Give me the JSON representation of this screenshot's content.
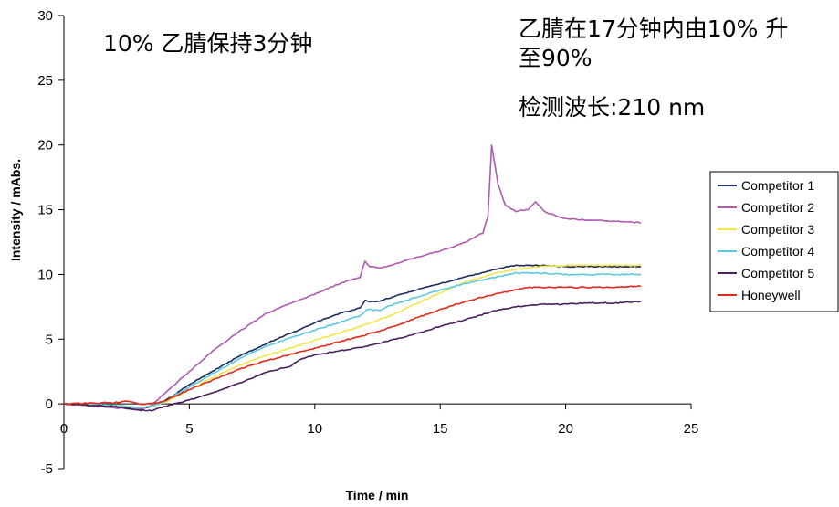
{
  "chart_data": {
    "type": "line",
    "xlabel": "Time / min",
    "ylabel": "Intensity / mAbs.",
    "xlim": [
      0,
      25
    ],
    "ylim": [
      -5,
      30
    ],
    "xticks": [
      0,
      5,
      10,
      15,
      20,
      25
    ],
    "yticks": [
      -5,
      0,
      5,
      10,
      15,
      20,
      25,
      30
    ],
    "grid": false,
    "legend_position": "right",
    "annotations": [
      "10% 乙腈保持3分钟",
      "乙腈在17分钟内由10% 升",
      "至90%",
      "检测波长:210 nm"
    ],
    "series": [
      {
        "name": "Competitor 1",
        "color": "#1f2d5a",
        "x": [
          0,
          2,
          3,
          3.5,
          4,
          5,
          6,
          7,
          8,
          8.7,
          9.5,
          10,
          11,
          11.8,
          12,
          12.1,
          12.5,
          13,
          14,
          15,
          16,
          17,
          18,
          19,
          20,
          21,
          22,
          23
        ],
        "y": [
          0,
          -0.2,
          -0.4,
          -0.2,
          0.2,
          1.5,
          2.6,
          3.7,
          4.6,
          5.2,
          5.8,
          6.3,
          7.0,
          7.4,
          8.0,
          7.9,
          7.9,
          8.2,
          8.8,
          9.3,
          9.8,
          10.3,
          10.7,
          10.7,
          10.6,
          10.6,
          10.6,
          10.6
        ]
      },
      {
        "name": "Competitor 2",
        "color": "#b05ab0",
        "x": [
          0,
          2,
          3,
          3.5,
          4,
          5,
          6,
          7,
          8,
          8.7,
          9.5,
          10,
          11,
          11.8,
          12,
          12.2,
          12.6,
          13,
          14,
          15,
          16,
          16.7,
          16.9,
          17.05,
          17.3,
          17.6,
          18,
          18.5,
          18.8,
          19.2,
          20,
          21,
          22,
          23
        ],
        "y": [
          0,
          -0.3,
          -0.4,
          -0.1,
          0.8,
          2.5,
          4.2,
          5.6,
          6.9,
          7.5,
          8.1,
          8.5,
          9.3,
          9.8,
          11.0,
          10.6,
          10.5,
          10.7,
          11.3,
          11.8,
          12.5,
          13.2,
          14.5,
          20.0,
          17.0,
          15.3,
          14.9,
          15.0,
          15.6,
          14.8,
          14.3,
          14.2,
          14.1,
          14.0
        ]
      },
      {
        "name": "Competitor 3",
        "color": "#f2e64a",
        "x": [
          0,
          2,
          3,
          3.5,
          4,
          5,
          6,
          7,
          8,
          9,
          10,
          11,
          12,
          13,
          14,
          15,
          16,
          17,
          18,
          19,
          20,
          21,
          22,
          23
        ],
        "y": [
          0,
          -0.1,
          -0.3,
          -0.2,
          0.1,
          1.1,
          2.1,
          3.0,
          3.7,
          4.3,
          4.9,
          5.5,
          6.1,
          6.8,
          7.7,
          8.6,
          9.4,
          10.0,
          10.4,
          10.6,
          10.7,
          10.7,
          10.7,
          10.7
        ]
      },
      {
        "name": "Competitor 4",
        "color": "#5cc8e0",
        "x": [
          0,
          2,
          3,
          3.5,
          4,
          5,
          6,
          7,
          8,
          9,
          10,
          11,
          11.8,
          12.1,
          12.6,
          13,
          14,
          15,
          16,
          17,
          18,
          19,
          20,
          21,
          22,
          23
        ],
        "y": [
          0,
          -0.1,
          -0.3,
          -0.2,
          0.2,
          1.3,
          2.4,
          3.5,
          4.4,
          5.1,
          5.7,
          6.3,
          6.8,
          7.3,
          7.2,
          7.6,
          8.2,
          8.8,
          9.3,
          9.7,
          10.1,
          10.1,
          10.0,
          10.0,
          10.0,
          10.0
        ]
      },
      {
        "name": "Competitor 5",
        "color": "#4a1f5a",
        "x": [
          0,
          2,
          3,
          3.5,
          4,
          5,
          6,
          7,
          8,
          9,
          9.5,
          10,
          11,
          12,
          13,
          14,
          15,
          16,
          17,
          18,
          19,
          20,
          21,
          22,
          23
        ],
        "y": [
          0,
          -0.2,
          -0.5,
          -0.5,
          -0.2,
          0.3,
          0.9,
          1.6,
          2.4,
          2.9,
          3.5,
          3.8,
          4.1,
          4.4,
          4.9,
          5.4,
          6.0,
          6.5,
          7.1,
          7.5,
          7.7,
          7.7,
          7.8,
          7.8,
          7.9
        ]
      },
      {
        "name": "Honeywell",
        "color": "#e02a1a",
        "x": [
          0,
          2,
          2.5,
          3,
          3.5,
          4,
          5,
          6,
          7,
          8,
          9,
          10,
          11,
          12,
          13,
          14,
          15,
          16,
          17,
          18,
          18.5,
          19,
          20,
          21,
          22,
          23
        ],
        "y": [
          0,
          0.1,
          0.2,
          0.0,
          0.0,
          0.2,
          1.1,
          1.9,
          2.7,
          3.3,
          3.8,
          4.3,
          4.8,
          5.3,
          5.9,
          6.6,
          7.3,
          7.9,
          8.4,
          8.8,
          9.0,
          9.0,
          9.0,
          9.0,
          9.0,
          9.1
        ]
      }
    ]
  }
}
